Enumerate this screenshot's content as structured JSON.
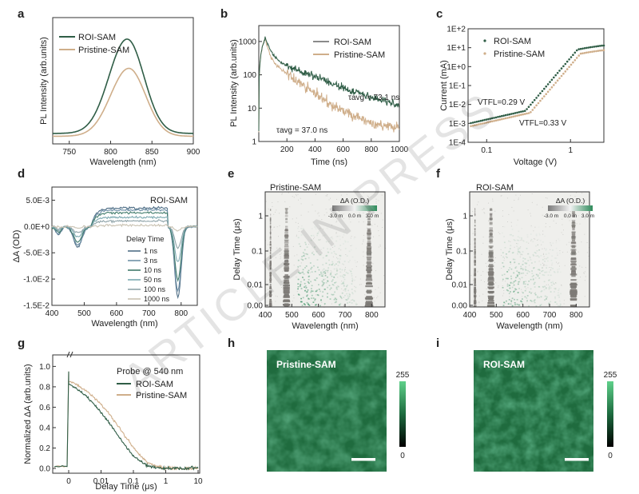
{
  "watermark": "ARTICLE IN PRESS",
  "colors": {
    "roi": "#2f5d46",
    "pristine": "#cfae8a",
    "green_map": "#2e8a5a",
    "grey_sig": "#8a8680"
  },
  "panels": {
    "a": {
      "letter": "a",
      "xlabel": "Wavelength (nm)",
      "ylabel": "PL Intensity (arb.units)",
      "xticks": [
        "750",
        "800",
        "850",
        "900"
      ],
      "legend": [
        "ROI-SAM",
        "Pristine-SAM"
      ]
    },
    "b": {
      "letter": "b",
      "xlabel": "Time (ns)",
      "ylabel": "PL Intensity (arb.units)",
      "xticks": [
        "200",
        "400",
        "600",
        "800",
        "1000"
      ],
      "yticks": [
        "1",
        "10",
        "100",
        "1000"
      ],
      "legend": [
        "ROI-SAM",
        "Pristine-SAM"
      ],
      "ann_roi": "τavg = 73.1 ns",
      "ann_pri": "τavg = 37.0 ns"
    },
    "c": {
      "letter": "c",
      "xlabel": "Voltage (V)",
      "ylabel": "Current (mA)",
      "xticks": [
        "0.1",
        "1"
      ],
      "yticks": [
        "1E+2",
        "1E+1",
        "1E+0",
        "1E-1",
        "1E-2",
        "1E-3",
        "1E-4"
      ],
      "legend": [
        "ROI-SAM",
        "Pristine-SAM"
      ],
      "vtfl_roi": "VTFL=0.29 V",
      "vtfl_pri": "VTFL=0.33 V"
    },
    "d": {
      "letter": "d",
      "title": "ROI-SAM",
      "xlabel": "Wavelength (nm)",
      "ylabel": "ΔA (OD)",
      "xticks": [
        "400",
        "500",
        "600",
        "700",
        "800"
      ],
      "yticks": [
        "5.0E-3",
        "0.0E+0",
        "-5.0E-3",
        "-1.0E-2",
        "-1.5E-2"
      ],
      "legend_title": "Delay Time",
      "legend": [
        "1 ns",
        "3 ns",
        "10 ns",
        "50 ns",
        "100 ns",
        "1000 ns"
      ]
    },
    "e": {
      "letter": "e",
      "title": "Pristine-SAM",
      "xlabel": "Wavelength (nm)",
      "ylabel": "Delay Time (μs)",
      "xticks": [
        "400",
        "500",
        "600",
        "700",
        "800"
      ],
      "yticks": [
        "1",
        "0.1",
        "0.01",
        "0.00"
      ],
      "cbar_title": "ΔA (O.D.)",
      "cbar_ticks": [
        "-3.0 m",
        "0.0 m",
        "3.0 m"
      ]
    },
    "f": {
      "letter": "f",
      "title": "ROI-SAM",
      "xlabel": "Wavelength (nm)",
      "ylabel": "Delay Time (μs)",
      "xticks": [
        "400",
        "500",
        "600",
        "700",
        "800"
      ],
      "yticks": [
        "1",
        "0.1",
        "0.01",
        "0.00"
      ],
      "cbar_title": "ΔA (O.D.)",
      "cbar_ticks": [
        "-3.0 m",
        "0.0 m",
        "3.0 m"
      ]
    },
    "g": {
      "letter": "g",
      "xlabel": "Delay Time (μs)",
      "ylabel": "Normalized ΔA (arb.units)",
      "xticks": [
        "0",
        "0.01",
        "0.1",
        "1",
        "10"
      ],
      "yticks": [
        "0.0",
        "0.2",
        "0.4",
        "0.6",
        "0.8",
        "1.0"
      ],
      "legend_title": "Probe @ 540 nm",
      "legend": [
        "ROI-SAM",
        "Pristine-SAM"
      ]
    },
    "h": {
      "letter": "h",
      "label": "Pristine-SAM",
      "cbar_max": "255",
      "cbar_min": "0"
    },
    "i": {
      "letter": "i",
      "label": "ROI-SAM",
      "cbar_max": "255",
      "cbar_min": "0"
    }
  },
  "chart_data": [
    {
      "panel": "a",
      "type": "line",
      "xlim": [
        730,
        900
      ],
      "series": [
        {
          "name": "ROI-SAM",
          "peak_x": 820,
          "peak_rel": 1.0
        },
        {
          "name": "Pristine-SAM",
          "peak_x": 822,
          "peak_rel": 0.72
        }
      ]
    },
    {
      "panel": "b",
      "type": "line",
      "xlim": [
        0,
        1000
      ],
      "ylim": [
        1,
        3000
      ],
      "yscale": "log",
      "series": [
        {
          "name": "ROI-SAM",
          "tau_avg_ns": 73.1
        },
        {
          "name": "Pristine-SAM",
          "tau_avg_ns": 37.0
        }
      ]
    },
    {
      "panel": "c",
      "type": "scatter",
      "xscale": "log",
      "yscale": "log",
      "xlim": [
        0.06,
        2.5
      ],
      "ylim": [
        0.0001,
        100
      ],
      "series": [
        {
          "name": "ROI-SAM",
          "vtfl": 0.29
        },
        {
          "name": "Pristine-SAM",
          "vtfl": 0.33
        }
      ]
    },
    {
      "panel": "d",
      "type": "line",
      "xlim": [
        400,
        850
      ],
      "ylim": [
        -0.015,
        0.0075
      ],
      "series": [
        {
          "name": "1 ns"
        },
        {
          "name": "3 ns"
        },
        {
          "name": "10 ns"
        },
        {
          "name": "50 ns"
        },
        {
          "name": "100 ns"
        },
        {
          "name": "1000 ns"
        }
      ]
    },
    {
      "panel": "e",
      "type": "heatmap",
      "xlim": [
        400,
        850
      ]
    },
    {
      "panel": "f",
      "type": "heatmap",
      "xlim": [
        400,
        850
      ]
    },
    {
      "panel": "g",
      "type": "line",
      "ylim": [
        0,
        1.05
      ],
      "series": [
        {
          "name": "ROI-SAM"
        },
        {
          "name": "Pristine-SAM"
        }
      ]
    }
  ]
}
